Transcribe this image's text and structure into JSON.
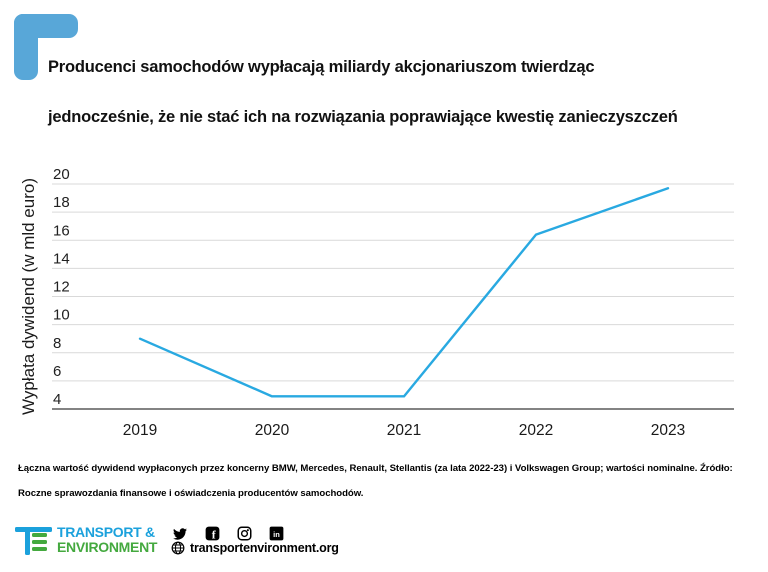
{
  "page": {
    "background": "#ffffff"
  },
  "corner_mark": {
    "color": "#58a7d8"
  },
  "title": {
    "line1": "Producenci samochodów wypłacają miliardy akcjonariuszom twierdząc",
    "line2": "jednocześnie, że nie stać ich na rozwiązania poprawiające kwestię zanieczyszczeń"
  },
  "chart_data": {
    "type": "line",
    "title": "",
    "categories": [
      "2019",
      "2020",
      "2021",
      "2022",
      "2023"
    ],
    "series": [
      {
        "name": "Wypłata dywidend",
        "values": [
          9,
          4.9,
          4.9,
          16.4,
          19.7
        ]
      }
    ],
    "xlabel": "",
    "ylabel": "Wypłata dywidend (w mld euro)",
    "ylim": [
      4,
      20
    ],
    "yticks": [
      20,
      18,
      16,
      14,
      12,
      10,
      8,
      6,
      4
    ],
    "grid": true,
    "legend": false,
    "line_color": "#29a9e1",
    "grid_color": "#d9d9d9",
    "axis_color": "#5a5a5a",
    "tick_color": "#212121"
  },
  "footnote": "Łączna wartość dywidend wypłaconych przez koncerny BMW, Mercedes, Renault, Stellantis (za lata 2022-23) i Volkswagen Group; wartości nominalne. Źródło: Roczne sprawozdania finansowe i oświadczenia producentów samochodów.",
  "footer": {
    "logo_line1": "TRANSPORT &",
    "logo_line2": "ENVIRONMENT",
    "logo_blue": "#1ba1dc",
    "logo_green": "#44a93f",
    "website": "transportenvironment.org",
    "social_icons": [
      "twitter-icon",
      "facebook-icon",
      "instagram-icon",
      "linkedin-icon"
    ]
  }
}
